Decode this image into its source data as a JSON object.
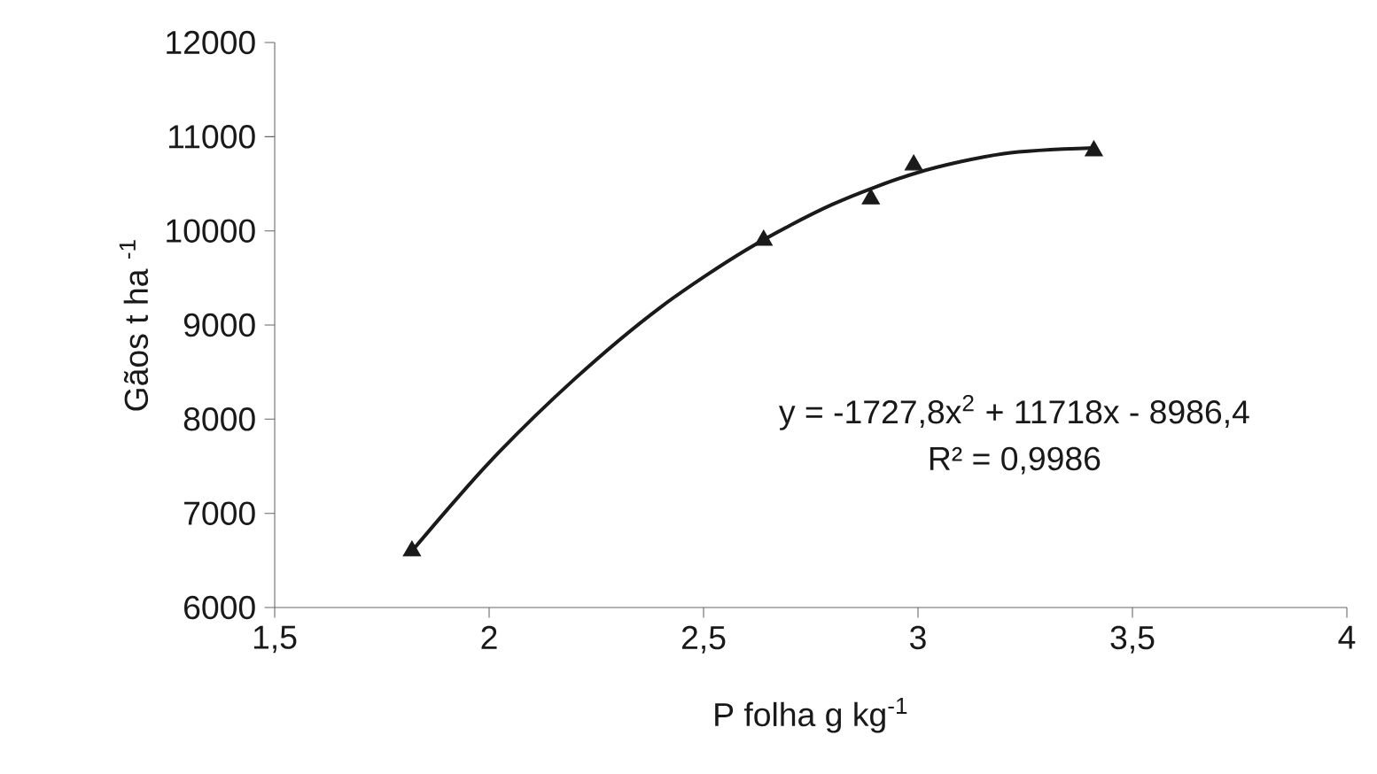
{
  "chart_data": {
    "type": "scatter",
    "xlabel": "P folha g kg$^{-1}$",
    "ylabel": "Gãos t ha $^{-1}$",
    "xlim": [
      1.5,
      4
    ],
    "ylim": [
      6000,
      12000
    ],
    "xticks": [
      {
        "value": 1.5,
        "label": "1,5"
      },
      2,
      {
        "value": 2.5,
        "label": "2,5"
      },
      3,
      {
        "value": 3.5,
        "label": "3,5"
      },
      4
    ],
    "yticks": [
      6000,
      7000,
      8000,
      9000,
      10000,
      11000,
      12000
    ],
    "grid": false,
    "marker": "triangle",
    "series": [
      {
        "color": "#1a1a1a",
        "x": [
          1.82,
          2.64,
          2.89,
          2.99,
          3.41
        ],
        "values": [
          6600,
          9900,
          10340,
          10700,
          10850
        ]
      },
      {
        "type": "line",
        "color": "#1a1a1a",
        "marker": "none",
        "line_style": "solid",
        "x": [
          1.82,
          2.0,
          2.2,
          2.4,
          2.6,
          2.8,
          3.0,
          3.2,
          3.41
        ],
        "values": [
          6600,
          7540,
          8430,
          9190,
          9800,
          10280,
          10620,
          10820,
          10880
        ]
      }
    ],
    "annotations": [
      "y = -1727,8x$^{2}$ + 11718x - 8986,4",
      "R² = 0,9986"
    ]
  }
}
